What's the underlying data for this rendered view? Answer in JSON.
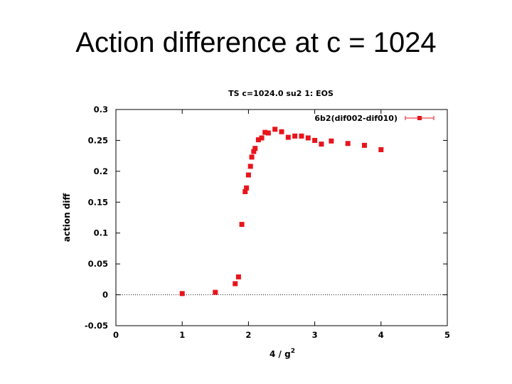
{
  "slide": {
    "title": "Action difference at c = 1024"
  },
  "chart_data": {
    "type": "scatter",
    "title": "TS c=1024.0 su2 1: EOS",
    "xlabel": "4 / g",
    "xlabel_sup": "2",
    "ylabel": "action diff",
    "xlim": [
      0,
      5
    ],
    "ylim": [
      -0.05,
      0.3
    ],
    "xticks": [
      0,
      1,
      2,
      3,
      4,
      5
    ],
    "xtick_labels": [
      "0",
      "1",
      "2",
      "3",
      "4",
      "5"
    ],
    "yticks": [
      -0.05,
      0,
      0.05,
      0.1,
      0.15,
      0.2,
      0.25,
      0.3
    ],
    "ytick_labels": [
      "-0.05",
      "0",
      "0.05",
      "0.1",
      "0.15",
      "0.2",
      "0.25",
      "0.3"
    ],
    "reference_line": 0,
    "legend_position": "top-right",
    "series": [
      {
        "name": "6b2(dif002-dif010)",
        "color": "#e8141c",
        "x": [
          1.0,
          1.5,
          1.8,
          1.85,
          1.9,
          1.95,
          1.97,
          2.0,
          2.03,
          2.05,
          2.08,
          2.1,
          2.15,
          2.2,
          2.25,
          2.3,
          2.4,
          2.5,
          2.6,
          2.7,
          2.8,
          2.9,
          3.0,
          3.1,
          3.25,
          3.5,
          3.75,
          4.0
        ],
        "y": [
          0.002,
          0.004,
          0.018,
          0.029,
          0.114,
          0.167,
          0.173,
          0.194,
          0.208,
          0.223,
          0.232,
          0.237,
          0.251,
          0.254,
          0.263,
          0.262,
          0.268,
          0.264,
          0.255,
          0.257,
          0.257,
          0.254,
          0.25,
          0.244,
          0.249,
          0.245,
          0.242,
          0.235
        ]
      }
    ]
  }
}
